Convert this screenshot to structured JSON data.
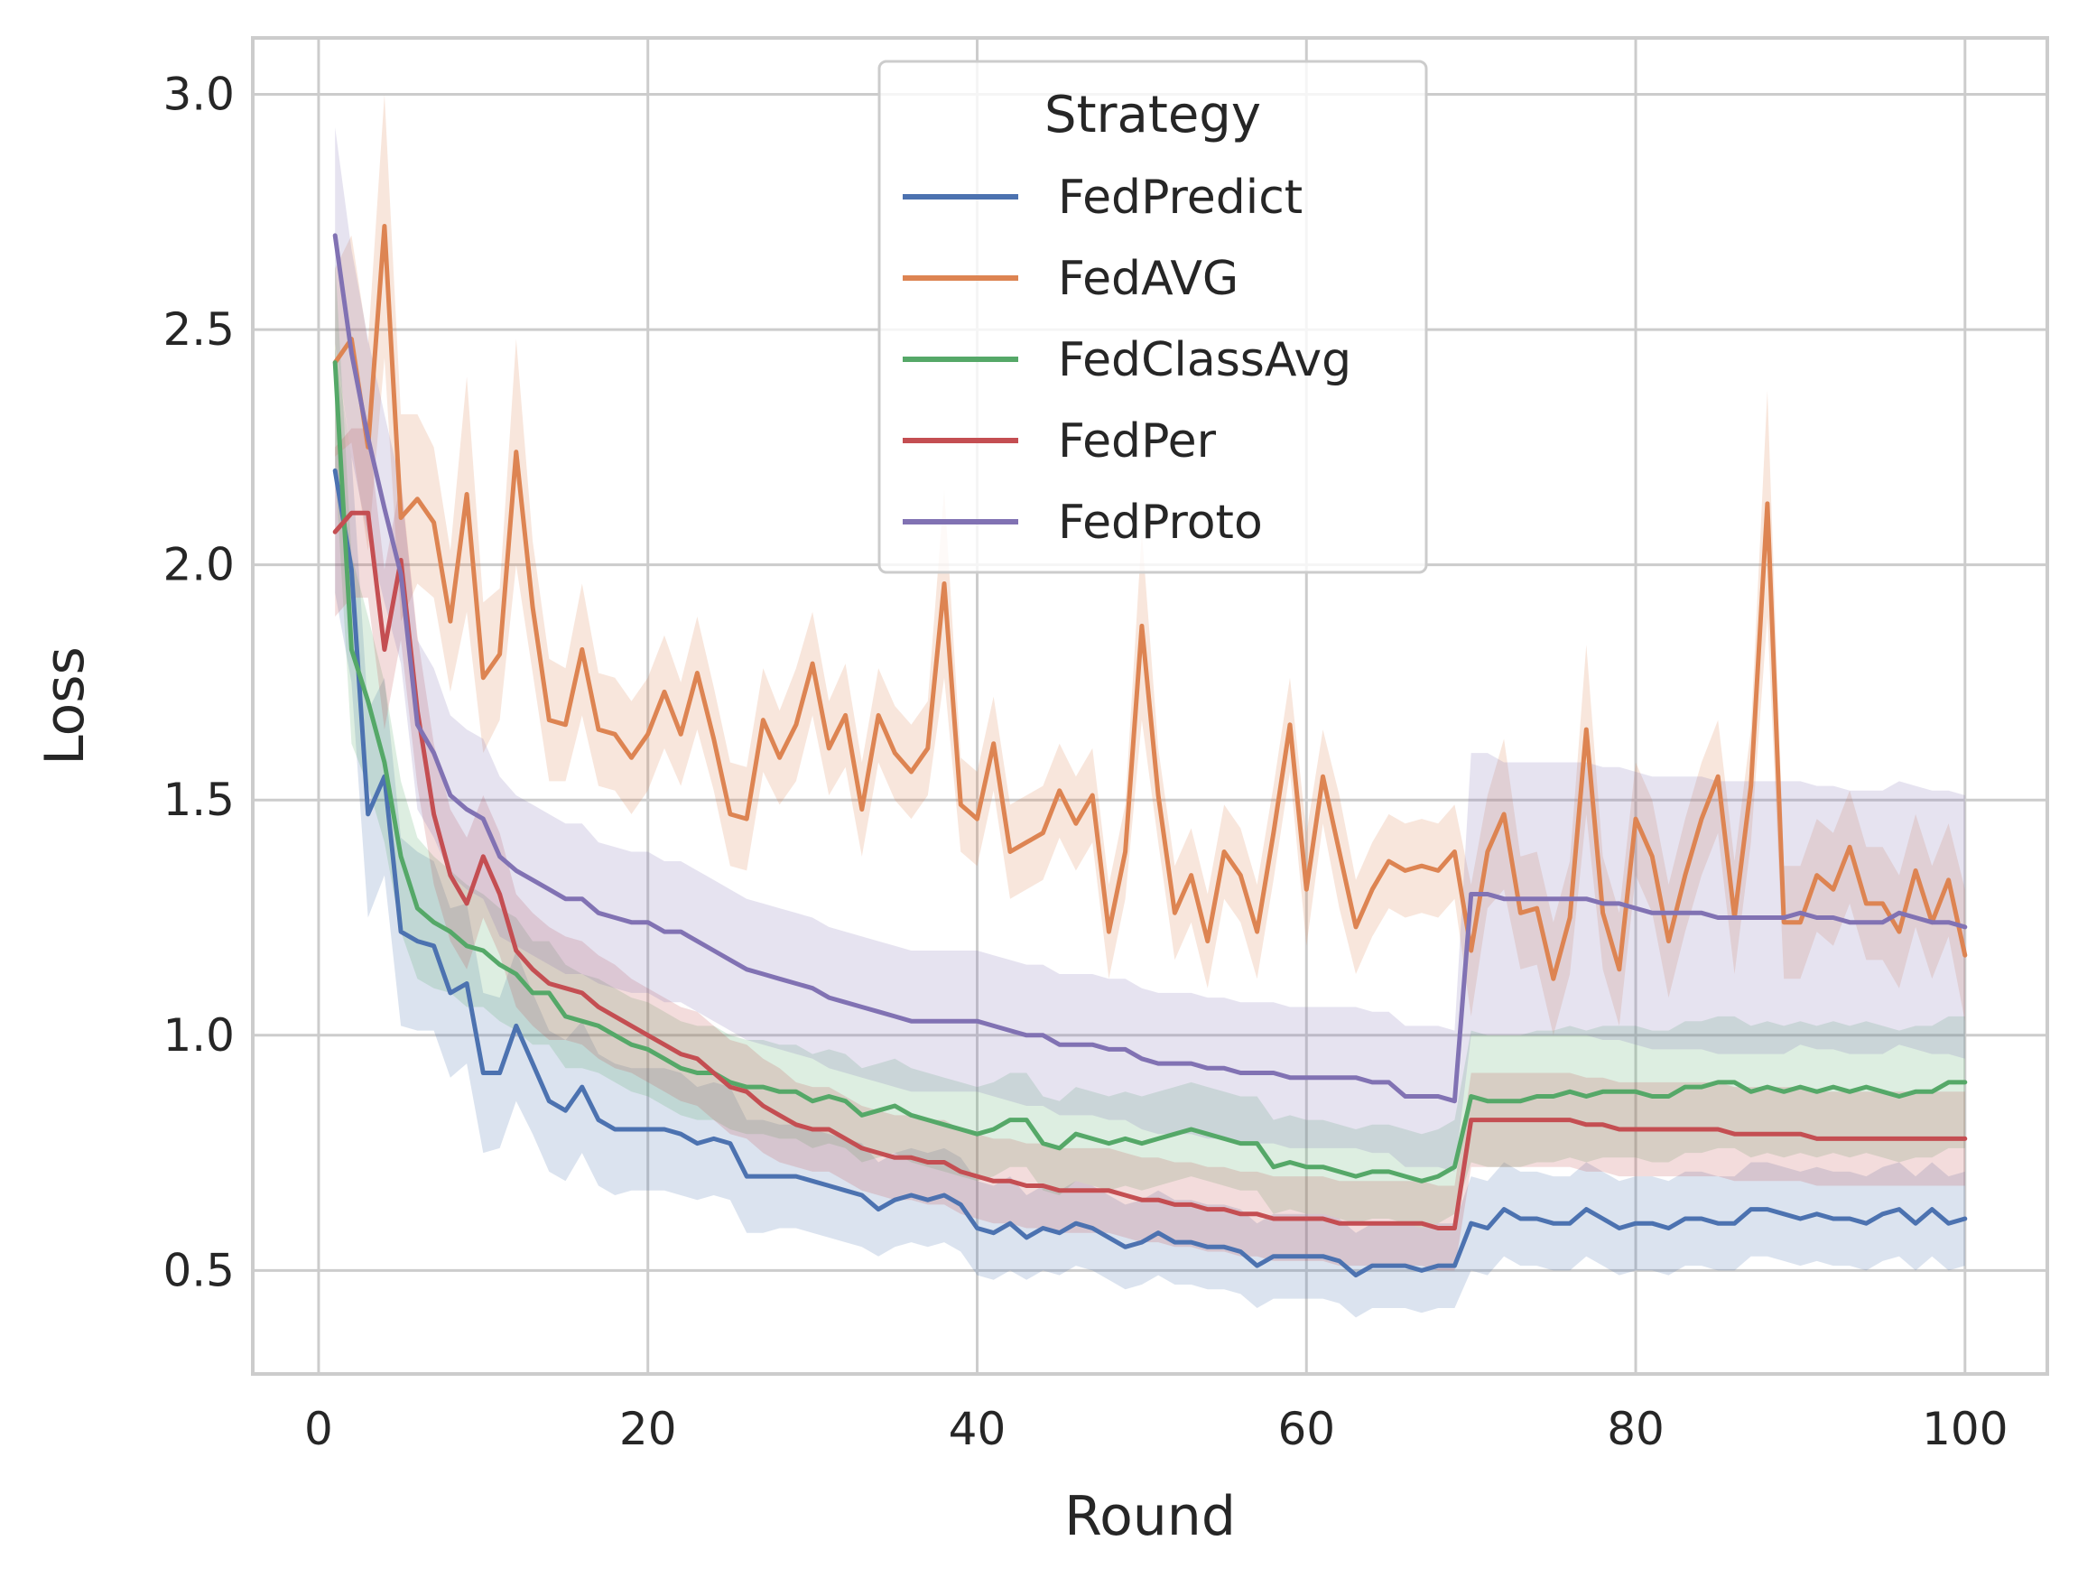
{
  "chart_data": {
    "type": "line",
    "xlabel": "Round",
    "ylabel": "Loss",
    "xlim": [
      -4,
      105
    ],
    "ylim": [
      0.28,
      3.12
    ],
    "x_ticks": [
      {
        "value": 0,
        "label": "0"
      },
      {
        "value": 20,
        "label": "20"
      },
      {
        "value": 40,
        "label": "40"
      },
      {
        "value": 60,
        "label": "60"
      },
      {
        "value": 80,
        "label": "80"
      },
      {
        "value": 100,
        "label": "100"
      }
    ],
    "y_ticks": [
      {
        "value": 0.5,
        "label": "0.5"
      },
      {
        "value": 1.0,
        "label": "1.0"
      },
      {
        "value": 1.5,
        "label": "1.5"
      },
      {
        "value": 2.0,
        "label": "2.0"
      },
      {
        "value": 2.5,
        "label": "2.5"
      },
      {
        "value": 3.0,
        "label": "3.0"
      }
    ],
    "grid": true,
    "legend": {
      "title": "Strategy",
      "placement": "top-center"
    },
    "x": [
      1,
      2,
      3,
      4,
      5,
      6,
      7,
      8,
      9,
      10,
      11,
      12,
      13,
      14,
      15,
      16,
      17,
      18,
      19,
      20,
      21,
      22,
      23,
      24,
      25,
      26,
      27,
      28,
      29,
      30,
      31,
      32,
      33,
      34,
      35,
      36,
      37,
      38,
      39,
      40,
      41,
      42,
      43,
      44,
      45,
      46,
      47,
      48,
      49,
      50,
      51,
      52,
      53,
      54,
      55,
      56,
      57,
      58,
      59,
      60,
      61,
      62,
      63,
      64,
      65,
      66,
      67,
      68,
      69,
      70,
      71,
      72,
      73,
      74,
      75,
      76,
      77,
      78,
      79,
      80,
      81,
      82,
      83,
      84,
      85,
      86,
      87,
      88,
      89,
      90,
      91,
      92,
      93,
      94,
      95,
      96,
      97,
      98,
      99,
      100
    ],
    "series": [
      {
        "name": "FedPredict",
        "color": "#4c72b0",
        "band_halfwidth": [
          0.26,
          0.24,
          0.22,
          0.21,
          0.2,
          0.19,
          0.18,
          0.18,
          0.17,
          0.17,
          0.16,
          0.16,
          0.15,
          0.15,
          0.15,
          0.14,
          0.14,
          0.14,
          0.13,
          0.13,
          0.13,
          0.13,
          0.12,
          0.12,
          0.12,
          0.12,
          0.12,
          0.11,
          0.11,
          0.11,
          0.11,
          0.11,
          0.11,
          0.1,
          0.1,
          0.1,
          0.1,
          0.1,
          0.1,
          0.1,
          0.1,
          0.1,
          0.09,
          0.09,
          0.09,
          0.09,
          0.09,
          0.09,
          0.09,
          0.09,
          0.09,
          0.09,
          0.09,
          0.09,
          0.09,
          0.09,
          0.09,
          0.09,
          0.09,
          0.09,
          0.09,
          0.09,
          0.09,
          0.09,
          0.09,
          0.09,
          0.09,
          0.09,
          0.09,
          0.1,
          0.1,
          0.1,
          0.1,
          0.1,
          0.1,
          0.1,
          0.1,
          0.1,
          0.1,
          0.1,
          0.1,
          0.1,
          0.1,
          0.1,
          0.1,
          0.1,
          0.1,
          0.1,
          0.1,
          0.1,
          0.1,
          0.1,
          0.1,
          0.1,
          0.1,
          0.1,
          0.1,
          0.1,
          0.1,
          0.1
        ],
        "values": [
          2.2,
          1.99,
          1.47,
          1.55,
          1.22,
          1.2,
          1.19,
          1.09,
          1.11,
          0.92,
          0.92,
          1.02,
          0.94,
          0.86,
          0.84,
          0.89,
          0.82,
          0.8,
          0.8,
          0.8,
          0.8,
          0.79,
          0.77,
          0.78,
          0.77,
          0.7,
          0.7,
          0.7,
          0.7,
          0.69,
          0.68,
          0.67,
          0.66,
          0.63,
          0.65,
          0.66,
          0.65,
          0.66,
          0.64,
          0.59,
          0.58,
          0.6,
          0.57,
          0.59,
          0.58,
          0.6,
          0.59,
          0.57,
          0.55,
          0.56,
          0.58,
          0.56,
          0.56,
          0.55,
          0.55,
          0.54,
          0.51,
          0.53,
          0.53,
          0.53,
          0.53,
          0.52,
          0.49,
          0.51,
          0.51,
          0.51,
          0.5,
          0.51,
          0.51,
          0.6,
          0.59,
          0.63,
          0.61,
          0.61,
          0.6,
          0.6,
          0.63,
          0.61,
          0.59,
          0.6,
          0.6,
          0.59,
          0.61,
          0.61,
          0.6,
          0.6,
          0.63,
          0.63,
          0.62,
          0.61,
          0.62,
          0.61,
          0.61,
          0.6,
          0.62,
          0.63,
          0.6,
          0.63,
          0.6,
          0.61
        ]
      },
      {
        "name": "FedAVG",
        "color": "#dd8452",
        "band_halfwidth": [
          0.2,
          0.22,
          0.22,
          0.28,
          0.22,
          0.18,
          0.16,
          0.15,
          0.25,
          0.16,
          0.14,
          0.24,
          0.14,
          0.13,
          0.12,
          0.14,
          0.12,
          0.12,
          0.12,
          0.12,
          0.12,
          0.11,
          0.12,
          0.11,
          0.11,
          0.11,
          0.11,
          0.1,
          0.12,
          0.11,
          0.1,
          0.11,
          0.1,
          0.1,
          0.1,
          0.1,
          0.1,
          0.2,
          0.1,
          0.1,
          0.1,
          0.1,
          0.1,
          0.1,
          0.1,
          0.1,
          0.1,
          0.1,
          0.1,
          0.2,
          0.1,
          0.1,
          0.1,
          0.1,
          0.1,
          0.1,
          0.1,
          0.1,
          0.1,
          0.12,
          0.1,
          0.12,
          0.1,
          0.1,
          0.1,
          0.1,
          0.1,
          0.1,
          0.1,
          0.14,
          0.12,
          0.16,
          0.12,
          0.12,
          0.12,
          0.12,
          0.18,
          0.12,
          0.12,
          0.12,
          0.12,
          0.12,
          0.12,
          0.12,
          0.12,
          0.12,
          0.12,
          0.24,
          0.12,
          0.12,
          0.12,
          0.12,
          0.12,
          0.12,
          0.12,
          0.12,
          0.12,
          0.12,
          0.12,
          0.14
        ],
        "values": [
          2.43,
          2.48,
          2.25,
          2.72,
          2.1,
          2.14,
          2.09,
          1.88,
          2.15,
          1.76,
          1.81,
          2.24,
          1.91,
          1.67,
          1.66,
          1.82,
          1.65,
          1.64,
          1.59,
          1.64,
          1.73,
          1.64,
          1.77,
          1.63,
          1.47,
          1.46,
          1.67,
          1.59,
          1.66,
          1.79,
          1.61,
          1.68,
          1.48,
          1.68,
          1.6,
          1.56,
          1.61,
          1.96,
          1.49,
          1.46,
          1.62,
          1.39,
          1.41,
          1.43,
          1.52,
          1.45,
          1.51,
          1.22,
          1.39,
          1.87,
          1.51,
          1.26,
          1.34,
          1.2,
          1.39,
          1.34,
          1.22,
          1.43,
          1.66,
          1.31,
          1.55,
          1.39,
          1.23,
          1.31,
          1.37,
          1.35,
          1.36,
          1.35,
          1.39,
          1.18,
          1.39,
          1.47,
          1.26,
          1.27,
          1.12,
          1.25,
          1.65,
          1.26,
          1.14,
          1.46,
          1.38,
          1.2,
          1.34,
          1.46,
          1.55,
          1.25,
          1.53,
          2.13,
          1.24,
          1.24,
          1.34,
          1.31,
          1.4,
          1.28,
          1.28,
          1.22,
          1.35,
          1.24,
          1.33,
          1.17
        ]
      },
      {
        "name": "FedClassAvg",
        "color": "#55a868",
        "band_halfwidth": [
          0.22,
          0.2,
          0.18,
          0.17,
          0.16,
          0.15,
          0.14,
          0.13,
          0.13,
          0.12,
          0.12,
          0.12,
          0.11,
          0.11,
          0.11,
          0.1,
          0.1,
          0.1,
          0.1,
          0.1,
          0.1,
          0.1,
          0.1,
          0.1,
          0.1,
          0.1,
          0.1,
          0.1,
          0.1,
          0.1,
          0.1,
          0.1,
          0.1,
          0.1,
          0.1,
          0.1,
          0.1,
          0.1,
          0.1,
          0.1,
          0.1,
          0.1,
          0.1,
          0.1,
          0.1,
          0.1,
          0.1,
          0.1,
          0.1,
          0.1,
          0.1,
          0.1,
          0.1,
          0.1,
          0.1,
          0.1,
          0.1,
          0.1,
          0.1,
          0.1,
          0.1,
          0.1,
          0.1,
          0.1,
          0.1,
          0.1,
          0.1,
          0.1,
          0.1,
          0.14,
          0.14,
          0.14,
          0.14,
          0.14,
          0.14,
          0.14,
          0.14,
          0.14,
          0.14,
          0.14,
          0.14,
          0.14,
          0.14,
          0.14,
          0.14,
          0.14,
          0.14,
          0.14,
          0.14,
          0.14,
          0.14,
          0.14,
          0.14,
          0.14,
          0.14,
          0.14,
          0.14,
          0.14,
          0.14,
          0.14
        ],
        "values": [
          2.43,
          1.82,
          1.71,
          1.58,
          1.38,
          1.27,
          1.24,
          1.22,
          1.19,
          1.18,
          1.15,
          1.13,
          1.09,
          1.09,
          1.04,
          1.03,
          1.02,
          1.0,
          0.98,
          0.97,
          0.95,
          0.93,
          0.92,
          0.92,
          0.9,
          0.89,
          0.89,
          0.88,
          0.88,
          0.86,
          0.87,
          0.86,
          0.83,
          0.84,
          0.85,
          0.83,
          0.82,
          0.81,
          0.8,
          0.79,
          0.8,
          0.82,
          0.82,
          0.77,
          0.76,
          0.79,
          0.78,
          0.77,
          0.78,
          0.77,
          0.78,
          0.79,
          0.8,
          0.79,
          0.78,
          0.77,
          0.77,
          0.72,
          0.73,
          0.72,
          0.72,
          0.71,
          0.7,
          0.71,
          0.71,
          0.7,
          0.69,
          0.7,
          0.72,
          0.87,
          0.86,
          0.86,
          0.86,
          0.87,
          0.87,
          0.88,
          0.87,
          0.88,
          0.88,
          0.88,
          0.87,
          0.87,
          0.89,
          0.89,
          0.9,
          0.9,
          0.88,
          0.89,
          0.88,
          0.89,
          0.88,
          0.89,
          0.88,
          0.89,
          0.88,
          0.87,
          0.88,
          0.88,
          0.9,
          0.9
        ]
      },
      {
        "name": "FedPer",
        "color": "#c44e52",
        "band_halfwidth": [
          0.18,
          0.18,
          0.18,
          0.17,
          0.17,
          0.16,
          0.15,
          0.14,
          0.14,
          0.13,
          0.13,
          0.12,
          0.12,
          0.12,
          0.11,
          0.11,
          0.11,
          0.11,
          0.1,
          0.1,
          0.1,
          0.1,
          0.1,
          0.1,
          0.1,
          0.1,
          0.1,
          0.1,
          0.09,
          0.09,
          0.09,
          0.09,
          0.09,
          0.09,
          0.09,
          0.09,
          0.09,
          0.09,
          0.09,
          0.09,
          0.09,
          0.09,
          0.09,
          0.09,
          0.09,
          0.09,
          0.09,
          0.09,
          0.09,
          0.09,
          0.09,
          0.09,
          0.09,
          0.09,
          0.09,
          0.09,
          0.09,
          0.09,
          0.09,
          0.09,
          0.09,
          0.09,
          0.09,
          0.09,
          0.09,
          0.09,
          0.09,
          0.09,
          0.09,
          0.1,
          0.1,
          0.1,
          0.1,
          0.1,
          0.1,
          0.1,
          0.1,
          0.1,
          0.1,
          0.1,
          0.1,
          0.1,
          0.1,
          0.1,
          0.1,
          0.1,
          0.1,
          0.1,
          0.1,
          0.1,
          0.1,
          0.1,
          0.1,
          0.1,
          0.1,
          0.1,
          0.1,
          0.1,
          0.1,
          0.1
        ],
        "values": [
          2.07,
          2.11,
          2.11,
          1.82,
          2.01,
          1.69,
          1.47,
          1.34,
          1.28,
          1.38,
          1.3,
          1.18,
          1.14,
          1.11,
          1.1,
          1.09,
          1.06,
          1.04,
          1.02,
          1.0,
          0.98,
          0.96,
          0.95,
          0.92,
          0.89,
          0.88,
          0.85,
          0.83,
          0.81,
          0.8,
          0.8,
          0.78,
          0.76,
          0.75,
          0.74,
          0.74,
          0.73,
          0.73,
          0.71,
          0.7,
          0.69,
          0.69,
          0.68,
          0.68,
          0.67,
          0.67,
          0.67,
          0.67,
          0.66,
          0.65,
          0.65,
          0.64,
          0.64,
          0.63,
          0.63,
          0.62,
          0.62,
          0.61,
          0.61,
          0.61,
          0.61,
          0.6,
          0.6,
          0.6,
          0.6,
          0.6,
          0.6,
          0.59,
          0.59,
          0.82,
          0.82,
          0.82,
          0.82,
          0.82,
          0.82,
          0.82,
          0.81,
          0.81,
          0.8,
          0.8,
          0.8,
          0.8,
          0.8,
          0.8,
          0.8,
          0.79,
          0.79,
          0.79,
          0.79,
          0.79,
          0.78,
          0.78,
          0.78,
          0.78,
          0.78,
          0.78,
          0.78,
          0.78,
          0.78,
          0.78
        ]
      },
      {
        "name": "FedProto",
        "color": "#8172b3",
        "band_halfwidth": [
          0.23,
          0.22,
          0.21,
          0.2,
          0.19,
          0.18,
          0.18,
          0.17,
          0.17,
          0.17,
          0.17,
          0.16,
          0.16,
          0.16,
          0.16,
          0.16,
          0.15,
          0.15,
          0.15,
          0.15,
          0.15,
          0.15,
          0.15,
          0.15,
          0.15,
          0.15,
          0.15,
          0.15,
          0.15,
          0.15,
          0.15,
          0.15,
          0.15,
          0.15,
          0.15,
          0.15,
          0.15,
          0.15,
          0.15,
          0.15,
          0.15,
          0.15,
          0.15,
          0.15,
          0.15,
          0.15,
          0.15,
          0.15,
          0.15,
          0.15,
          0.15,
          0.15,
          0.15,
          0.15,
          0.15,
          0.15,
          0.15,
          0.15,
          0.15,
          0.15,
          0.15,
          0.15,
          0.15,
          0.15,
          0.15,
          0.15,
          0.15,
          0.15,
          0.15,
          0.3,
          0.3,
          0.29,
          0.29,
          0.29,
          0.29,
          0.29,
          0.29,
          0.29,
          0.29,
          0.29,
          0.29,
          0.29,
          0.29,
          0.29,
          0.29,
          0.29,
          0.29,
          0.29,
          0.29,
          0.28,
          0.28,
          0.28,
          0.28,
          0.28,
          0.28,
          0.28,
          0.28,
          0.28,
          0.28,
          0.28
        ],
        "values": [
          2.7,
          2.45,
          2.27,
          2.12,
          1.98,
          1.66,
          1.6,
          1.51,
          1.48,
          1.46,
          1.38,
          1.35,
          1.33,
          1.31,
          1.29,
          1.29,
          1.26,
          1.25,
          1.24,
          1.24,
          1.22,
          1.22,
          1.2,
          1.18,
          1.16,
          1.14,
          1.13,
          1.12,
          1.11,
          1.1,
          1.08,
          1.07,
          1.06,
          1.05,
          1.04,
          1.03,
          1.03,
          1.03,
          1.03,
          1.03,
          1.02,
          1.01,
          1.0,
          1.0,
          0.98,
          0.98,
          0.98,
          0.97,
          0.97,
          0.95,
          0.94,
          0.94,
          0.94,
          0.93,
          0.93,
          0.92,
          0.92,
          0.92,
          0.91,
          0.91,
          0.91,
          0.91,
          0.91,
          0.9,
          0.9,
          0.87,
          0.87,
          0.87,
          0.86,
          1.3,
          1.3,
          1.29,
          1.29,
          1.29,
          1.29,
          1.29,
          1.29,
          1.28,
          1.28,
          1.27,
          1.26,
          1.26,
          1.26,
          1.26,
          1.25,
          1.25,
          1.25,
          1.25,
          1.25,
          1.26,
          1.25,
          1.25,
          1.24,
          1.24,
          1.24,
          1.26,
          1.25,
          1.24,
          1.24,
          1.23
        ]
      }
    ]
  }
}
